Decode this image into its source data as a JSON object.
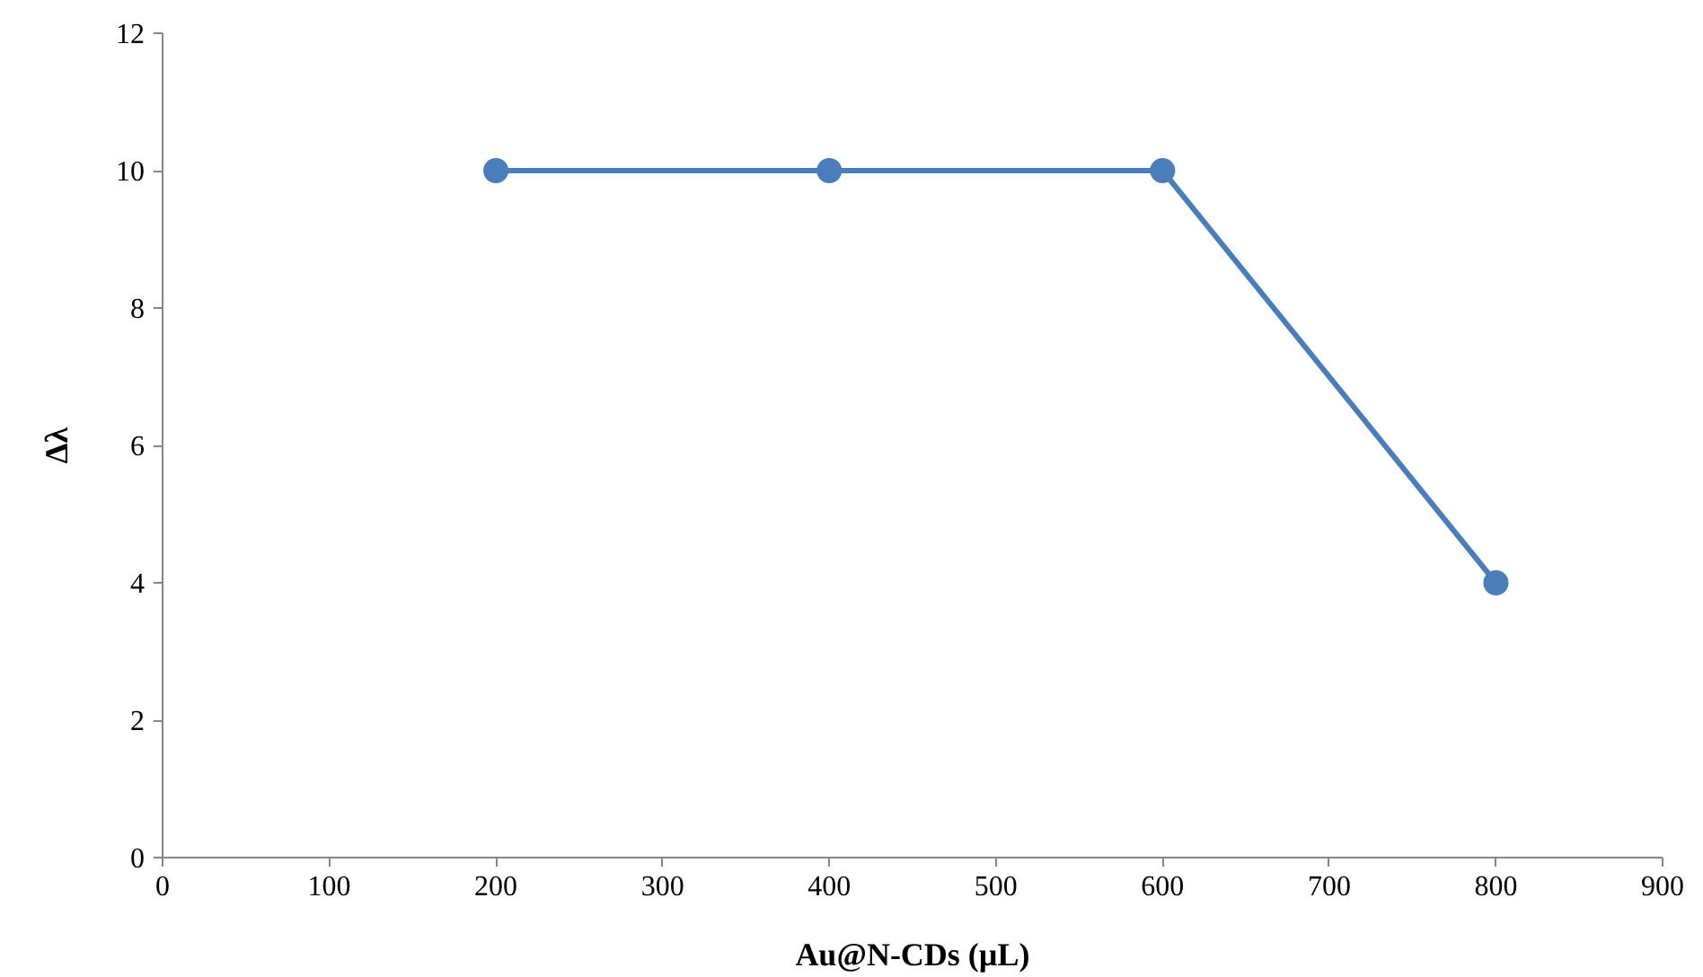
{
  "chart_data": {
    "type": "line",
    "xlabel": "Au@N-CDs (µL)",
    "ylabel": "Δλ",
    "x": [
      200,
      400,
      600,
      800
    ],
    "series": [
      {
        "color": "#4a7ebb",
        "values": [
          10,
          10,
          10,
          4
        ]
      }
    ],
    "xlim": [
      0,
      900
    ],
    "xticks": [
      0,
      100,
      200,
      300,
      400,
      500,
      600,
      700,
      800,
      900
    ],
    "ylim": [
      0,
      12
    ],
    "yticks": [
      0,
      2,
      4,
      6,
      8,
      10,
      12
    ],
    "grid": false,
    "marker": "circle",
    "line_style": "solid"
  }
}
